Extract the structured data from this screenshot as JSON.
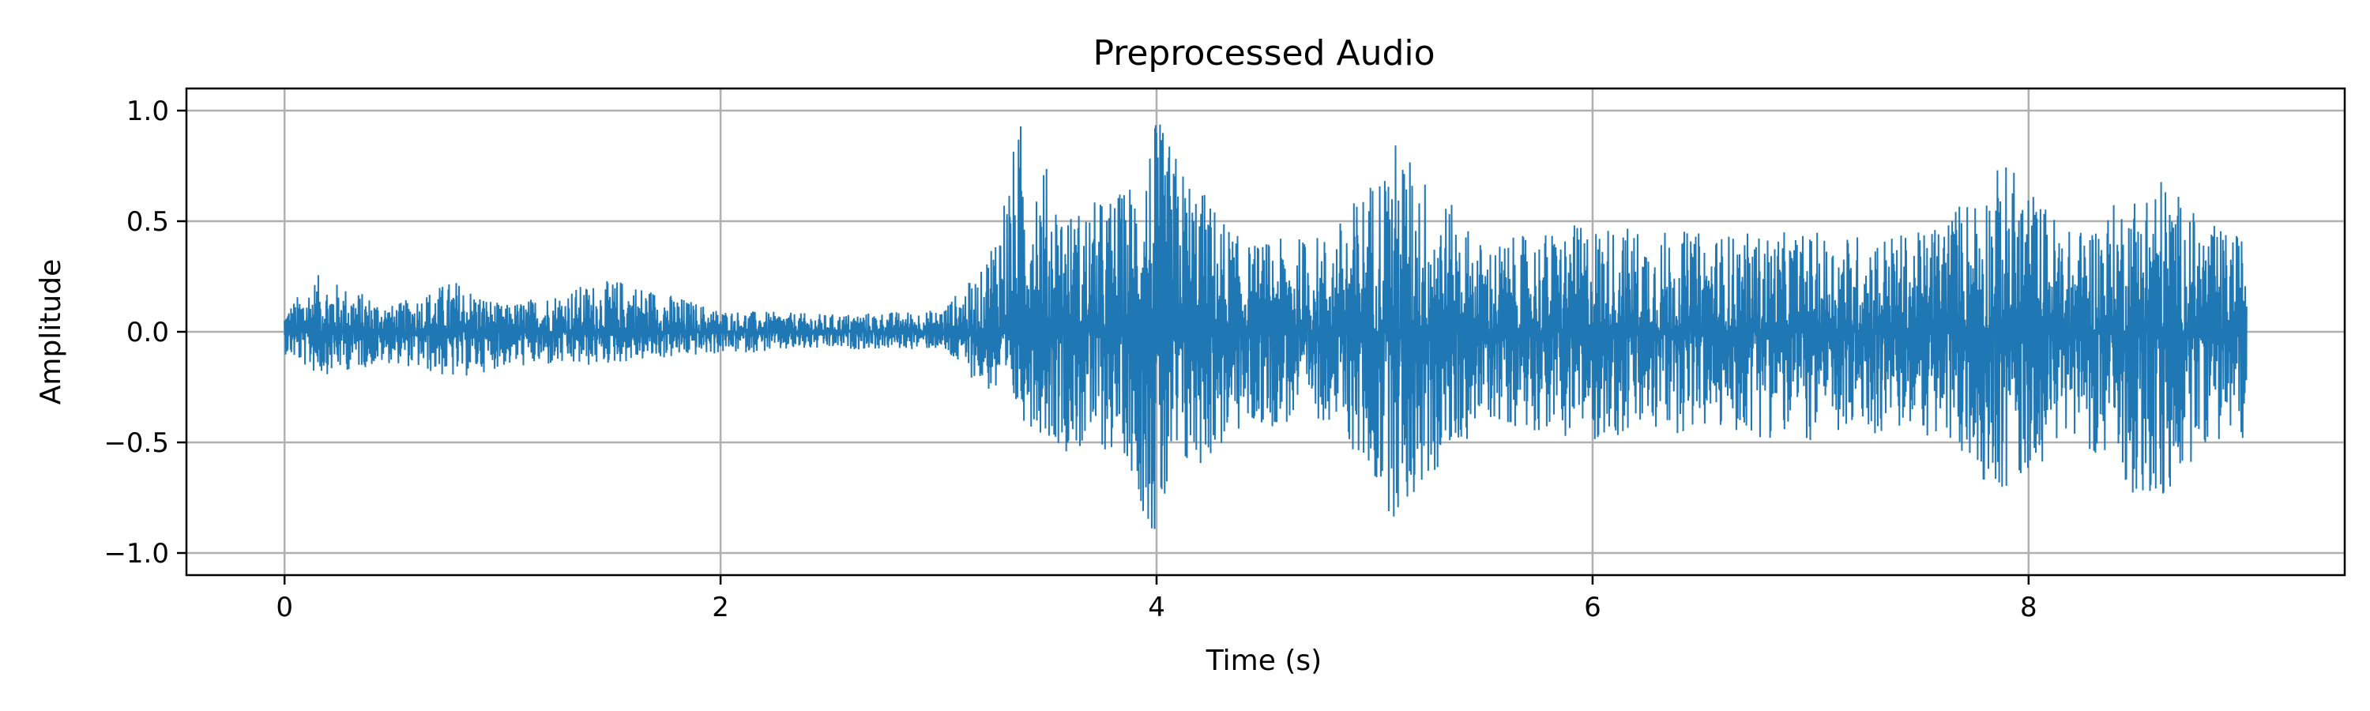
{
  "chart_data": {
    "type": "line",
    "title": "Preprocessed Audio",
    "xlabel": "Time (s)",
    "ylabel": "Amplitude",
    "xlim": [
      -0.45,
      9.45
    ],
    "ylim": [
      -1.1,
      1.1
    ],
    "xticks": [
      0,
      2,
      4,
      6,
      8
    ],
    "xtick_labels": [
      "0",
      "2",
      "4",
      "6",
      "8"
    ],
    "yticks": [
      1.0,
      0.5,
      0.0,
      -0.5,
      -1.0
    ],
    "ytick_labels": [
      "1.0",
      "0.5",
      "0.0",
      "−0.5",
      "−1.0"
    ],
    "grid": true,
    "legend": "none",
    "series": [
      {
        "color": "#1f77b4",
        "duration": 9.0,
        "envelope": [
          {
            "t": 0.0,
            "max": 0.1,
            "min": -0.1
          },
          {
            "t": 0.15,
            "max": 0.26,
            "min": -0.2
          },
          {
            "t": 0.5,
            "max": 0.12,
            "min": -0.14
          },
          {
            "t": 0.78,
            "max": 0.24,
            "min": -0.22
          },
          {
            "t": 1.0,
            "max": 0.12,
            "min": -0.16
          },
          {
            "t": 1.4,
            "max": 0.22,
            "min": -0.16
          },
          {
            "t": 1.55,
            "max": 0.24,
            "min": -0.14
          },
          {
            "t": 2.0,
            "max": 0.1,
            "min": -0.1
          },
          {
            "t": 2.5,
            "max": 0.08,
            "min": -0.08
          },
          {
            "t": 3.0,
            "max": 0.1,
            "min": -0.08
          },
          {
            "t": 3.2,
            "max": 0.28,
            "min": -0.25
          },
          {
            "t": 3.38,
            "max": 0.98,
            "min": -0.4
          },
          {
            "t": 3.6,
            "max": 0.55,
            "min": -0.55
          },
          {
            "t": 3.85,
            "max": 0.65,
            "min": -0.55
          },
          {
            "t": 4.0,
            "max": 0.97,
            "min": -1.0
          },
          {
            "t": 4.1,
            "max": 0.8,
            "min": -0.7
          },
          {
            "t": 4.4,
            "max": 0.4,
            "min": -0.45
          },
          {
            "t": 4.8,
            "max": 0.45,
            "min": -0.4
          },
          {
            "t": 5.1,
            "max": 0.88,
            "min": -0.87
          },
          {
            "t": 5.5,
            "max": 0.4,
            "min": -0.4
          },
          {
            "t": 6.0,
            "max": 0.5,
            "min": -0.5
          },
          {
            "t": 6.5,
            "max": 0.45,
            "min": -0.45
          },
          {
            "t": 7.0,
            "max": 0.45,
            "min": -0.5
          },
          {
            "t": 7.5,
            "max": 0.45,
            "min": -0.45
          },
          {
            "t": 7.9,
            "max": 0.78,
            "min": -0.75
          },
          {
            "t": 8.2,
            "max": 0.45,
            "min": -0.45
          },
          {
            "t": 8.6,
            "max": 0.73,
            "min": -0.86
          },
          {
            "t": 8.8,
            "max": 0.5,
            "min": -0.5
          },
          {
            "t": 9.0,
            "max": 0.43,
            "min": -0.5
          }
        ]
      }
    ]
  }
}
